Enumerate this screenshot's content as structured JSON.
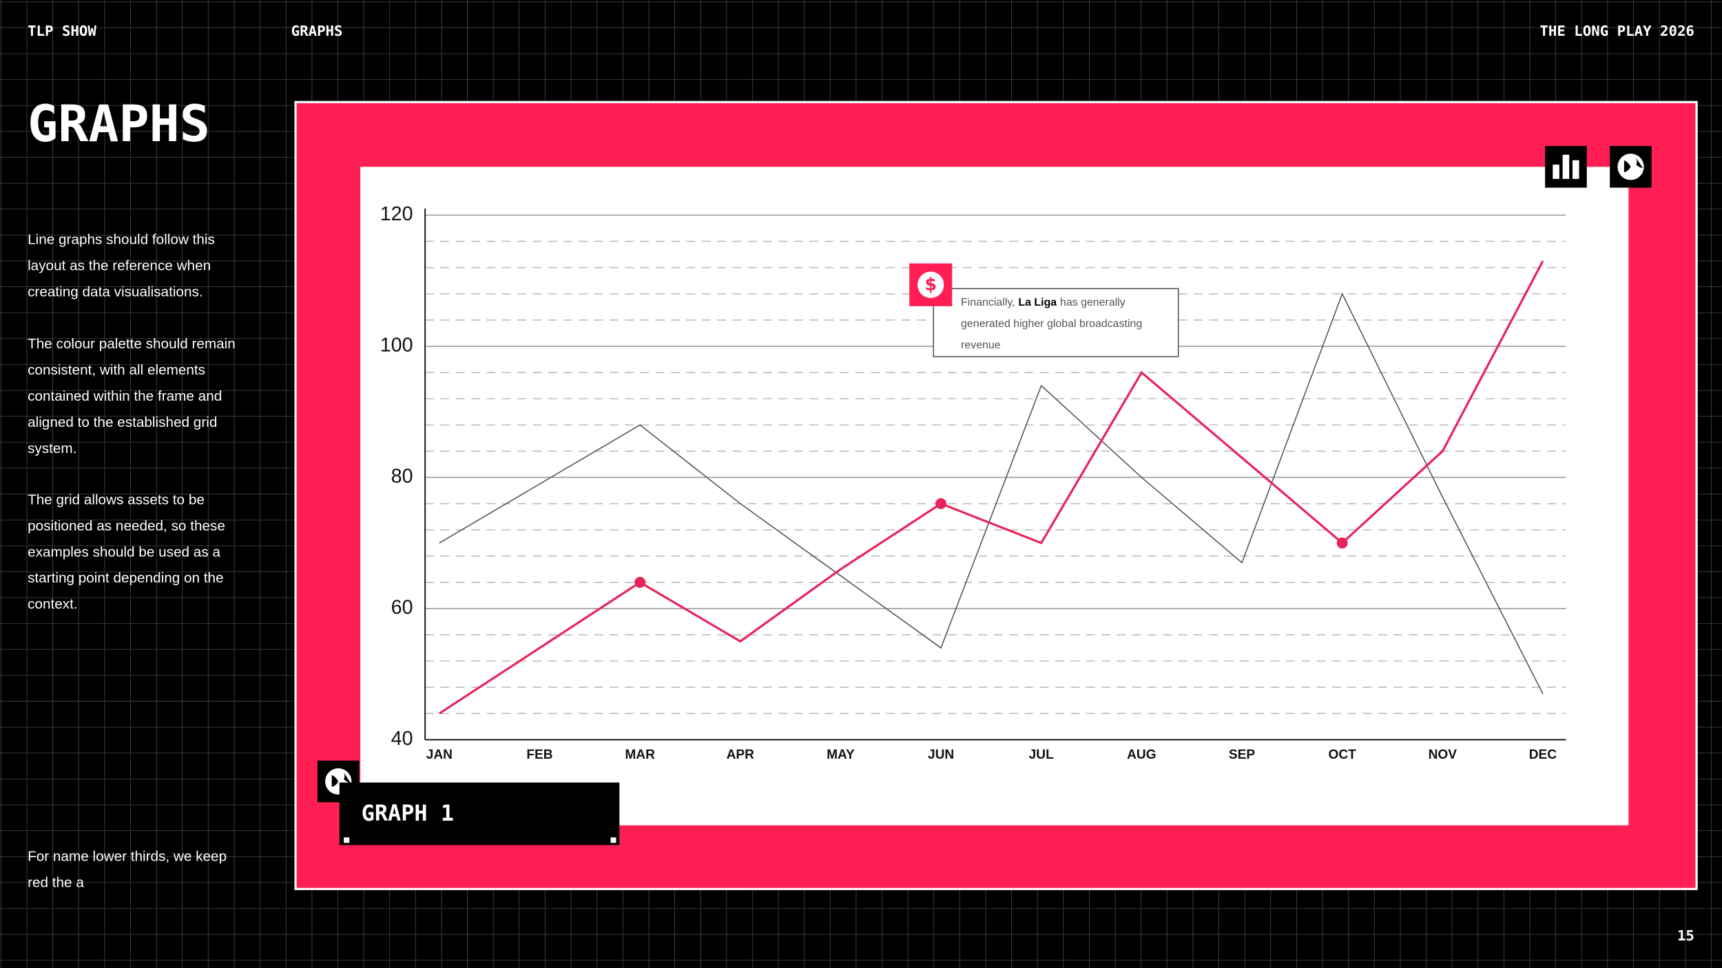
{
  "header": {
    "left": "TLP SHOW",
    "middle": "GRAPHS",
    "right": "THE LONG PLAY 2026"
  },
  "title": "GRAPHS",
  "paragraphs": [
    [
      "Line graphs should follow this",
      "layout as the reference when",
      "creating data visualisations."
    ],
    [
      "The colour palette should remain",
      "consistent, with all elements",
      "contained within the frame and",
      "aligned to the established grid",
      "system."
    ],
    [
      "The grid allows assets to be",
      "positioned as needed, so these",
      "examples should be used as a",
      "starting point depending on the",
      "context."
    ],
    [
      "For name lower thirds, we keep",
      "red the a"
    ]
  ],
  "graph_label": "GRAPH 1",
  "page_number": "15",
  "chart_data": {
    "type": "line",
    "categories": [
      "JAN",
      "FEB",
      "MAR",
      "APR",
      "MAY",
      "JUN",
      "JUL",
      "AUG",
      "SEP",
      "OCT",
      "NOV",
      "DEC"
    ],
    "series": [
      {
        "color": "#555555",
        "values": [
          70,
          79,
          88,
          76,
          65,
          54,
          94,
          80,
          67,
          108,
          77,
          47
        ]
      },
      {
        "color": "#e8225a",
        "values": [
          44,
          54,
          64,
          55,
          66,
          76,
          70,
          96,
          83,
          70,
          84,
          113
        ],
        "markers": [
          2,
          5,
          9
        ]
      }
    ],
    "ylim": [
      40,
      120
    ],
    "yticks": [
      40,
      60,
      80,
      100,
      120
    ],
    "grid": true,
    "annotation": {
      "lines": [
        [
          "Financially,",
          "La Liga",
          "has generally"
        ],
        [
          "generated higher global broadcasting"
        ],
        [
          "revenue"
        ]
      ],
      "bold": "La Liga"
    }
  }
}
